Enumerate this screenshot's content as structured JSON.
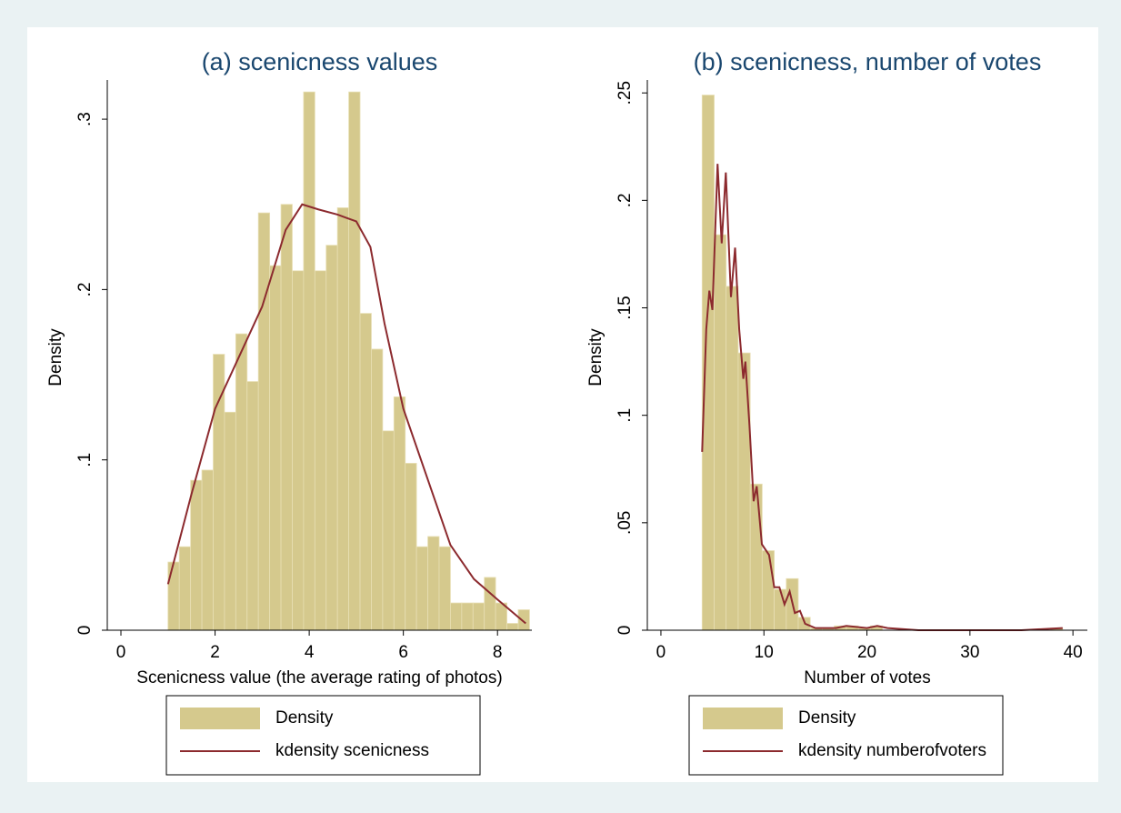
{
  "chart_data": [
    {
      "type": "histogram",
      "title": "(a) scenicness values",
      "xlabel": "Scenicness value (the average rating of photos)",
      "ylabel": "Density",
      "xlim": [
        -0.29,
        8.73
      ],
      "ylim": [
        0,
        0.323
      ],
      "xticks": [
        0,
        2,
        4,
        6,
        8
      ],
      "yticks": [
        0,
        {
          "value": 0.1,
          "label": ".1"
        },
        {
          "value": 0.2,
          "label": ".2"
        },
        {
          "value": 0.3,
          "label": ".3"
        }
      ],
      "series": [
        {
          "name": "Density",
          "type": "bar",
          "color": "#d5c98d",
          "bins": [
            1.0,
            1.24,
            1.48,
            1.72,
            1.96,
            2.2,
            2.44,
            2.68,
            2.92,
            3.16,
            3.4,
            3.64,
            3.88,
            4.12,
            4.36,
            4.6,
            4.84,
            5.08,
            5.32,
            5.56,
            5.8,
            6.04,
            6.28,
            6.52,
            6.76,
            7.0,
            7.24,
            7.48,
            7.72,
            7.96,
            8.2,
            8.44,
            8.68
          ],
          "values": [
            0.04,
            0.049,
            0.088,
            0.094,
            0.162,
            0.128,
            0.174,
            0.146,
            0.245,
            0.214,
            0.25,
            0.211,
            0.316,
            0.211,
            0.226,
            0.248,
            0.316,
            0.186,
            0.165,
            0.117,
            0.137,
            0.098,
            0.049,
            0.055,
            0.049,
            0.016,
            0.016,
            0.016,
            0.031,
            0.016,
            0.004,
            0.012
          ]
        },
        {
          "name": "kdensity scenicness",
          "type": "line",
          "color": "#8c2a2e",
          "x": [
            1.0,
            1.5,
            2.0,
            2.5,
            3.0,
            3.5,
            3.85,
            4.2,
            4.6,
            5.0,
            5.3,
            5.6,
            6.0,
            6.5,
            7.0,
            7.5,
            8.0,
            8.6
          ],
          "values": [
            0.027,
            0.08,
            0.13,
            0.16,
            0.19,
            0.235,
            0.25,
            0.247,
            0.244,
            0.24,
            0.225,
            0.18,
            0.13,
            0.09,
            0.05,
            0.03,
            0.018,
            0.004
          ]
        }
      ]
    },
    {
      "type": "histogram",
      "title": "(b) scenicness, number of votes",
      "xlabel": "Number of votes",
      "ylabel": "Density",
      "xlim": [
        -1.32,
        41.4
      ],
      "ylim": [
        0,
        0.256
      ],
      "xticks": [
        0,
        10,
        20,
        30,
        40
      ],
      "yticks": [
        0,
        {
          "value": 0.05,
          "label": ".05"
        },
        {
          "value": 0.1,
          "label": ".1"
        },
        {
          "value": 0.15,
          "label": ".15"
        },
        {
          "value": 0.2,
          "label": ".2"
        },
        {
          "value": 0.25,
          "label": ".25"
        }
      ],
      "series": [
        {
          "name": "Density",
          "type": "bar",
          "color": "#d5c98d",
          "bins": [
            4,
            5.17,
            6.33,
            7.5,
            8.67,
            9.83,
            11,
            12.17,
            13.33,
            14.5,
            15.67,
            16.83,
            18,
            19.17,
            20.33,
            21.5,
            22.67,
            23.83,
            25,
            26.17,
            27.33,
            28.5,
            29.67,
            30.83,
            32,
            33.17,
            34.33,
            35.5,
            36.67,
            37.83,
            39
          ],
          "values": [
            0.249,
            0.184,
            0.16,
            0.129,
            0.068,
            0.037,
            0.019,
            0.024,
            0.006,
            0.001,
            0.001,
            0.002,
            0.002,
            0.001,
            0.002,
            0,
            0,
            0,
            0,
            0,
            0,
            0,
            0,
            0,
            0,
            0,
            0,
            0,
            0,
            0.001
          ]
        },
        {
          "name": "kdensity numberofvoters",
          "type": "line",
          "color": "#8c2a2e",
          "x": [
            4,
            4.4,
            4.7,
            5,
            5.5,
            5.9,
            6.3,
            6.8,
            7.2,
            7.6,
            8,
            8.2,
            8.6,
            9,
            9.3,
            9.8,
            10.5,
            11,
            11.5,
            12,
            12.5,
            13,
            13.5,
            14,
            15,
            17,
            18,
            20,
            21,
            22,
            25,
            30,
            35,
            39
          ],
          "values": [
            0.083,
            0.14,
            0.158,
            0.149,
            0.217,
            0.18,
            0.213,
            0.155,
            0.178,
            0.14,
            0.117,
            0.125,
            0.095,
            0.06,
            0.067,
            0.04,
            0.035,
            0.02,
            0.02,
            0.012,
            0.018,
            0.008,
            0.009,
            0.003,
            0.001,
            0.001,
            0.002,
            0.001,
            0.002,
            0.001,
            0,
            0,
            0,
            0.001
          ]
        }
      ]
    }
  ]
}
